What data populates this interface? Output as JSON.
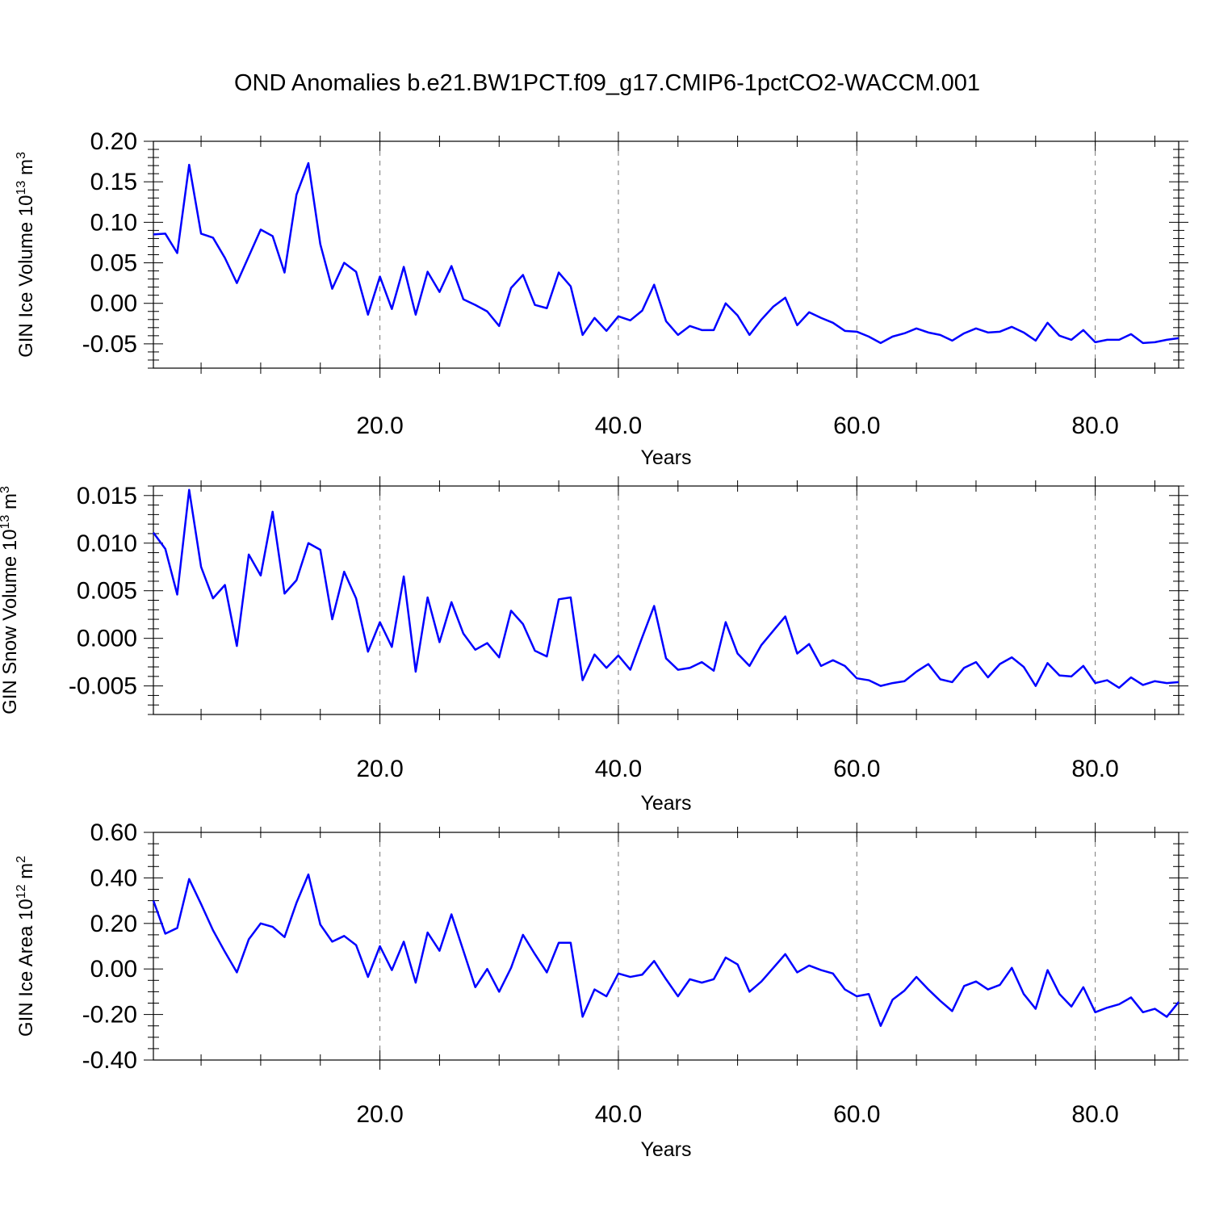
{
  "figure": {
    "title": "OND Anomalies b.e21.BW1PCT.f09_g17.CMIP6-1pctCO2-WACCM.001"
  },
  "colors": {
    "series": "#0000ff",
    "grid": "#777777"
  },
  "chart_data": [
    {
      "type": "line",
      "title": "",
      "xlabel": "Years",
      "ylabel": "GIN Ice Volume 10^13 m^3",
      "ylabel_parts": {
        "text": "GIN Ice Volume 10",
        "exp": "13",
        "unit": " m",
        "unit_exp": "3"
      },
      "xlim": [
        1,
        87
      ],
      "ylim": [
        -0.08,
        0.2
      ],
      "x_ticks": [
        20,
        40,
        60,
        80
      ],
      "x_tick_labels": [
        "20.0",
        "40.0",
        "60.0",
        "80.0"
      ],
      "y_ticks": [
        0.2,
        0.15,
        0.1,
        0.05,
        0.0,
        -0.05
      ],
      "y_tick_labels": [
        "0.20",
        "0.15",
        "0.10",
        "0.05",
        "0.00",
        "-0.05"
      ],
      "grid": "vertical dashed at major x ticks",
      "x_start": 1,
      "series": [
        {
          "values": [
            0.085,
            0.086,
            0.062,
            0.171,
            0.086,
            0.081,
            0.056,
            0.025,
            0.058,
            0.091,
            0.083,
            0.038,
            0.134,
            0.173,
            0.073,
            0.018,
            0.05,
            0.039,
            -0.014,
            0.033,
            -0.007,
            0.045,
            -0.014,
            0.039,
            0.014,
            0.046,
            0.005,
            -0.002,
            -0.01,
            -0.028,
            0.019,
            0.035,
            -0.002,
            -0.006,
            0.038,
            0.021,
            -0.039,
            -0.018,
            -0.034,
            -0.016,
            -0.021,
            -0.009,
            0.023,
            -0.022,
            -0.039,
            -0.028,
            -0.033,
            -0.033,
            0.0,
            -0.015,
            -0.039,
            -0.02,
            -0.004,
            0.007,
            -0.027,
            -0.011,
            -0.018,
            -0.024,
            -0.034,
            -0.035,
            -0.041,
            -0.049,
            -0.041,
            -0.037,
            -0.031,
            -0.036,
            -0.039,
            -0.046,
            -0.037,
            -0.031,
            -0.036,
            -0.035,
            -0.029,
            -0.036,
            -0.046,
            -0.024,
            -0.04,
            -0.045,
            -0.033,
            -0.048,
            -0.045,
            -0.045,
            -0.038,
            -0.049,
            -0.048,
            -0.045,
            -0.043
          ]
        }
      ]
    },
    {
      "type": "line",
      "title": "",
      "xlabel": "Years",
      "ylabel": "GIN Snow Volume 10^13 m^3",
      "ylabel_parts": {
        "text": "GIN Snow Volume 10",
        "exp": "13",
        "unit": " m",
        "unit_exp": "3"
      },
      "xlim": [
        1,
        87
      ],
      "ylim": [
        -0.008,
        0.016
      ],
      "x_ticks": [
        20,
        40,
        60,
        80
      ],
      "x_tick_labels": [
        "20.0",
        "40.0",
        "60.0",
        "80.0"
      ],
      "y_ticks": [
        0.015,
        0.01,
        0.005,
        0.0,
        -0.005
      ],
      "y_tick_labels": [
        "0.015",
        "0.010",
        "0.005",
        "0.000",
        "-0.005"
      ],
      "grid": "vertical dashed at major x ticks",
      "x_start": 1,
      "series": [
        {
          "values": [
            0.0111,
            0.0094,
            0.0046,
            0.0156,
            0.0075,
            0.0042,
            0.0056,
            -0.0008,
            0.0088,
            0.0066,
            0.0133,
            0.0047,
            0.0061,
            0.01,
            0.0093,
            0.002,
            0.007,
            0.0042,
            -0.0014,
            0.0017,
            -0.0009,
            0.0065,
            -0.0035,
            0.0043,
            -0.0004,
            0.0038,
            0.0005,
            -0.0012,
            -0.0005,
            -0.002,
            0.0029,
            0.0015,
            -0.0013,
            -0.0019,
            0.0041,
            0.0043,
            -0.0044,
            -0.0017,
            -0.0031,
            -0.0018,
            -0.0033,
            0.0001,
            0.0034,
            -0.0021,
            -0.0033,
            -0.0031,
            -0.0025,
            -0.0034,
            0.0017,
            -0.0016,
            -0.0029,
            -0.0007,
            0.0008,
            0.0023,
            -0.0016,
            -0.0006,
            -0.0029,
            -0.0023,
            -0.0029,
            -0.0042,
            -0.0044,
            -0.005,
            -0.0047,
            -0.0045,
            -0.0035,
            -0.0027,
            -0.0043,
            -0.0046,
            -0.0031,
            -0.0025,
            -0.0041,
            -0.0027,
            -0.002,
            -0.003,
            -0.005,
            -0.0026,
            -0.0039,
            -0.004,
            -0.0029,
            -0.0047,
            -0.0044,
            -0.0052,
            -0.0041,
            -0.0049,
            -0.0045,
            -0.0047,
            -0.0046
          ]
        }
      ]
    },
    {
      "type": "line",
      "title": "",
      "xlabel": "Years",
      "ylabel": "GIN Ice Area 10^12 m^2",
      "ylabel_parts": {
        "text": "GIN Ice Area 10",
        "exp": "12",
        "unit": " m",
        "unit_exp": "2"
      },
      "xlim": [
        1,
        87
      ],
      "ylim": [
        -0.4,
        0.6
      ],
      "x_ticks": [
        20,
        40,
        60,
        80
      ],
      "x_tick_labels": [
        "20.0",
        "40.0",
        "60.0",
        "80.0"
      ],
      "y_ticks": [
        0.6,
        0.4,
        0.2,
        0.0,
        -0.2,
        -0.4
      ],
      "y_tick_labels": [
        "0.60",
        "0.40",
        "0.20",
        "0.00",
        "-0.20",
        "-0.40"
      ],
      "grid": "vertical dashed at major x ticks",
      "x_start": 1,
      "series": [
        {
          "values": [
            0.3,
            0.155,
            0.18,
            0.395,
            0.285,
            0.17,
            0.075,
            -0.015,
            0.13,
            0.2,
            0.185,
            0.14,
            0.29,
            0.415,
            0.195,
            0.12,
            0.145,
            0.105,
            -0.035,
            0.1,
            -0.005,
            0.12,
            -0.06,
            0.16,
            0.08,
            0.24,
            0.08,
            -0.08,
            0.0,
            -0.1,
            0.005,
            0.15,
            0.065,
            -0.015,
            0.115,
            0.115,
            -0.21,
            -0.09,
            -0.12,
            -0.02,
            -0.035,
            -0.025,
            0.035,
            -0.045,
            -0.12,
            -0.045,
            -0.06,
            -0.045,
            0.05,
            0.02,
            -0.1,
            -0.055,
            0.005,
            0.065,
            -0.015,
            0.015,
            -0.005,
            -0.02,
            -0.09,
            -0.12,
            -0.11,
            -0.25,
            -0.135,
            -0.095,
            -0.035,
            -0.09,
            -0.14,
            -0.185,
            -0.075,
            -0.055,
            -0.09,
            -0.07,
            0.005,
            -0.11,
            -0.175,
            -0.005,
            -0.11,
            -0.165,
            -0.08,
            -0.19,
            -0.17,
            -0.155,
            -0.125,
            -0.19,
            -0.175,
            -0.21,
            -0.145
          ]
        }
      ]
    }
  ]
}
